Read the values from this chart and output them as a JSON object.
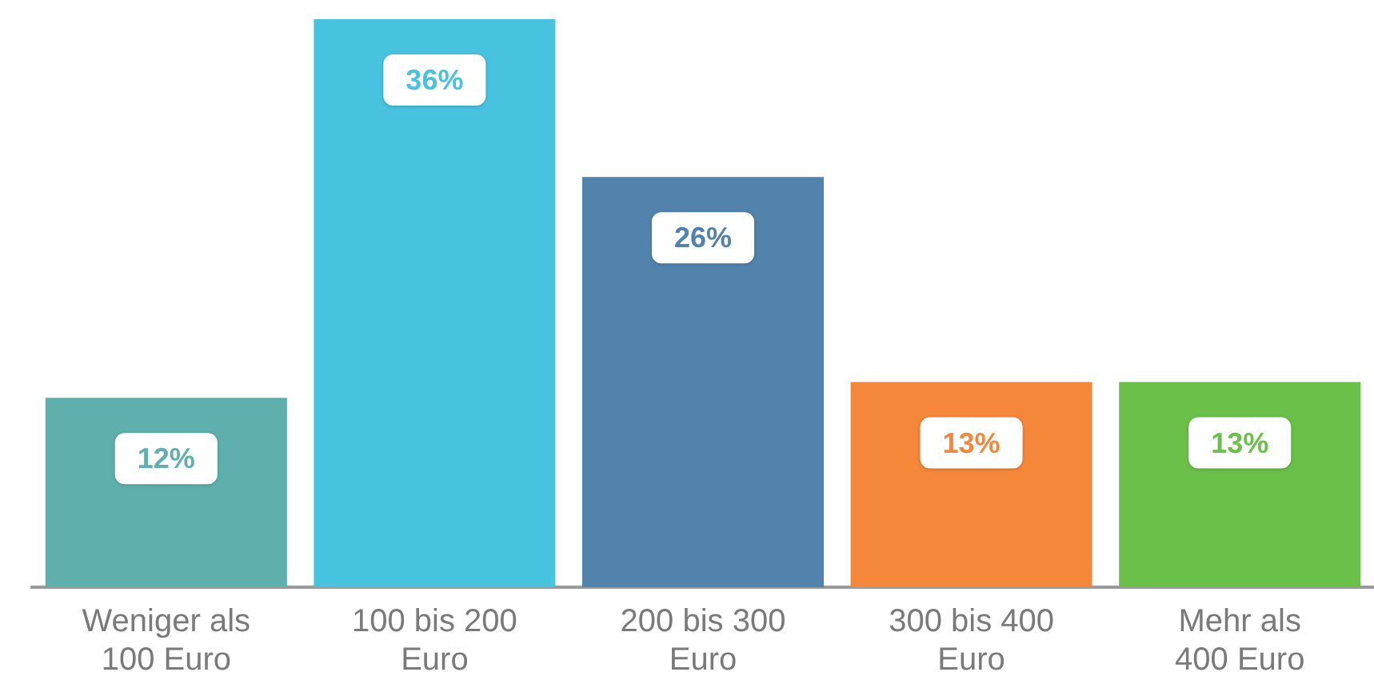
{
  "chart_data": {
    "type": "bar",
    "categories": [
      "Weniger als 100 Euro",
      "100 bis 200 Euro",
      "200 bis 300 Euro",
      "300 bis 400 Euro",
      "Mehr als 400 Euro"
    ],
    "values": [
      12,
      36,
      26,
      13,
      13
    ],
    "colors": [
      "#5fb0ac",
      "#47c3df",
      "#5283ac",
      "#f5873b",
      "#6bc04a"
    ],
    "value_labels": [
      "12%",
      "36%",
      "26%",
      "13%",
      "13%"
    ],
    "grid": false,
    "legend": false
  }
}
